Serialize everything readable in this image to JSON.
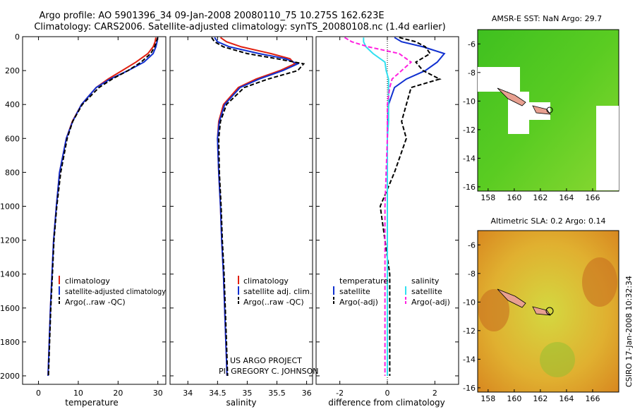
{
  "header": {
    "line1": "Argo profile: AO 5901396_34 09-Jan-2008 20080110_75 10.275S 162.623E",
    "line2": "Climatology: CARS2006. Satellite-adjusted climatology: synTS_20080108.nc (1.4d earlier)"
  },
  "colors": {
    "climatology": "#e02010",
    "satellite": "#1030d0",
    "argo": "#000000",
    "sal_satellite": "#30e0f0",
    "sal_argo": "#ff20e0"
  },
  "chart_data": [
    {
      "type": "line",
      "id": "temperature",
      "xlabel": "temperature",
      "ylabel": "",
      "xlim": [
        -4,
        32
      ],
      "ylim": [
        2050,
        0
      ],
      "xticks": [
        0,
        10,
        20,
        30
      ],
      "yticks": [
        0,
        200,
        400,
        600,
        800,
        1000,
        1200,
        1400,
        1600,
        1800,
        2000
      ],
      "legend": [
        "climatology",
        "satellite-adjusted climatology",
        "Argo(..raw -QC)"
      ],
      "depth": [
        5,
        30,
        60,
        100,
        150,
        200,
        250,
        300,
        400,
        500,
        600,
        800,
        1000,
        1200,
        1400,
        1600,
        1800,
        2000
      ],
      "series": [
        {
          "name": "climatology",
          "values": [
            29.5,
            29.3,
            28.8,
            27.5,
            24.5,
            21,
            17.5,
            14.5,
            10.8,
            8.5,
            7,
            5.3,
            4.5,
            3.8,
            3.4,
            3.0,
            2.7,
            2.4
          ]
        },
        {
          "name": "satellite-adjusted climatology",
          "values": [
            29.9,
            29.8,
            29.5,
            28.8,
            26.5,
            22.5,
            18,
            14.5,
            10.8,
            8.6,
            7,
            5.3,
            4.5,
            3.8,
            3.4,
            3.0,
            2.7,
            2.4
          ]
        },
        {
          "name": "Argo(..raw -QC)",
          "values": [
            30.0,
            29.6,
            29.2,
            28.2,
            25.8,
            22.5,
            18.5,
            15.2,
            11.0,
            8.6,
            7.2,
            5.6,
            4.6,
            3.9,
            3.5,
            3.1,
            2.8,
            2.5
          ]
        }
      ]
    },
    {
      "type": "line",
      "id": "salinity",
      "xlabel": "salinity",
      "xlim": [
        33.7,
        36.1
      ],
      "ylim": [
        2050,
        0
      ],
      "xticks": [
        34,
        34.5,
        35,
        35.5,
        36
      ],
      "legend": [
        "climatology",
        "satellite adj. clim.",
        "Argo(..raw -QC)"
      ],
      "depth": [
        5,
        30,
        60,
        100,
        130,
        160,
        200,
        250,
        300,
        400,
        500,
        600,
        800,
        1000,
        1200,
        1400,
        1600,
        1800,
        2000
      ],
      "series": [
        {
          "name": "climatology",
          "values": [
            34.55,
            34.65,
            34.9,
            35.4,
            35.72,
            35.8,
            35.55,
            35.15,
            34.85,
            34.6,
            34.52,
            34.5,
            34.52,
            34.55,
            34.57,
            34.6,
            34.62,
            34.64,
            34.66
          ]
        },
        {
          "name": "satellite adj. clim.",
          "values": [
            34.45,
            34.5,
            34.7,
            35.2,
            35.65,
            35.85,
            35.6,
            35.2,
            34.88,
            34.62,
            34.53,
            34.5,
            34.52,
            34.55,
            34.57,
            34.6,
            34.62,
            34.64,
            34.66
          ]
        },
        {
          "name": "Argo(..raw -QC)",
          "values": [
            34.4,
            34.45,
            34.6,
            35.0,
            35.5,
            35.95,
            35.85,
            35.35,
            34.95,
            34.65,
            34.55,
            34.52,
            34.53,
            34.56,
            34.58,
            34.61,
            34.63,
            34.65,
            34.67
          ]
        }
      ]
    },
    {
      "type": "line",
      "id": "difference",
      "xlabel": "difference from climatology",
      "xlim": [
        -3,
        3
      ],
      "ylim": [
        2050,
        0
      ],
      "xticks": [
        -2,
        0,
        2
      ],
      "legend_temperature": {
        "title": "temperature",
        "items": [
          "satellite",
          "Argo(-adj)"
        ]
      },
      "legend_salinity": {
        "title": "salinity",
        "items": [
          "satellite",
          "Argo(-adj)"
        ]
      },
      "depth": [
        5,
        30,
        60,
        100,
        150,
        200,
        250,
        300,
        400,
        500,
        600,
        800,
        1000,
        1200,
        1400,
        1600,
        1800,
        2000
      ],
      "series": [
        {
          "name": "temperature satellite",
          "values": [
            0.3,
            0.6,
            1.5,
            2.4,
            2.1,
            1.6,
            0.8,
            0.3,
            0.05,
            0.02,
            0.0,
            0.0,
            0.0,
            0.0,
            0.0,
            0.0,
            0.0,
            0.0
          ]
        },
        {
          "name": "temperature Argo(-adj)",
          "values": [
            0.5,
            1.2,
            1.6,
            1.8,
            1.2,
            1.5,
            2.2,
            1.0,
            0.8,
            0.6,
            0.8,
            0.3,
            -0.3,
            -0.1,
            0.1,
            0.1,
            0.1,
            0.1
          ]
        },
        {
          "name": "salinity satellite",
          "values": [
            -1.0,
            -1.0,
            -0.9,
            -0.6,
            -0.1,
            -0.05,
            0.05,
            0.05,
            0.05,
            0.05,
            0.0,
            0.0,
            0.0,
            0.0,
            0.0,
            0.0,
            0.0,
            0.0
          ]
        },
        {
          "name": "salinity Argo(-adj)",
          "values": [
            -1.8,
            -1.5,
            -0.8,
            0.5,
            1.0,
            0.6,
            0.2,
            0.1,
            0.0,
            0.0,
            0.0,
            -0.05,
            -0.1,
            -0.1,
            -0.1,
            -0.1,
            -0.1,
            -0.1
          ]
        }
      ]
    }
  ],
  "maps": {
    "sst": {
      "title": "AMSR-E SST: NaN Argo: 29.7",
      "xticks": [
        158,
        160,
        162,
        164,
        166
      ],
      "yticks": [
        -6,
        -8,
        -10,
        -12,
        -14,
        -16
      ]
    },
    "sla": {
      "title": "Altimetric SLA: 0.2 Argo: 0.14",
      "xticks": [
        158,
        160,
        162,
        164,
        166
      ],
      "yticks": [
        -6,
        -8,
        -10,
        -12,
        -14,
        -16
      ]
    },
    "argo_position": {
      "lon": 162.623,
      "lat": -10.275
    }
  },
  "annotation": {
    "line1": "US ARGO PROJECT",
    "line2": "PI: GREGORY C. JOHNSON"
  },
  "stamp": "CSIRO 17-Jan-2008 10:32:34"
}
